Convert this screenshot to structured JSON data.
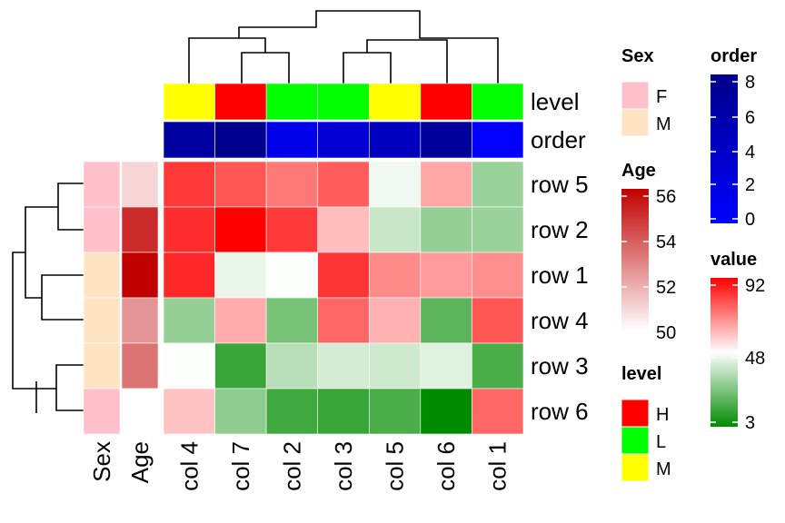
{
  "chart_data": {
    "type": "heatmap",
    "title": "",
    "columns": [
      "col 4",
      "col 7",
      "col 2",
      "col 3",
      "col 5",
      "col 6",
      "col 1"
    ],
    "rows": [
      "row 5",
      "row 2",
      "row 1",
      "row 4",
      "row 3",
      "row 6"
    ],
    "values": [
      [
        82,
        77,
        71,
        76,
        45,
        63,
        30
      ],
      [
        84,
        92,
        82,
        59,
        38,
        29,
        30
      ],
      [
        85,
        44,
        47,
        83,
        68,
        65,
        67
      ],
      [
        29,
        62,
        24,
        74,
        61,
        19,
        77
      ],
      [
        47,
        13,
        35,
        40,
        39,
        42,
        16
      ],
      [
        58,
        28,
        14,
        13,
        16,
        3,
        74
      ]
    ],
    "row_annotations": {
      "labels": [
        "Sex",
        "Age"
      ],
      "Sex": [
        "F",
        "F",
        "M",
        "M",
        "M",
        "F"
      ],
      "Age": [
        51,
        55,
        56,
        52.5,
        53.3,
        null
      ]
    },
    "col_annotations": {
      "labels": [
        "level",
        "order"
      ],
      "level": [
        "M",
        "H",
        "L",
        "L",
        "M",
        "H",
        "L"
      ],
      "order": [
        6.5,
        7.8,
        1.5,
        3.2,
        4.5,
        7.0,
        0.2
      ]
    },
    "legends": {
      "sex": {
        "title": "Sex",
        "items": [
          {
            "label": "F",
            "color": "#FFC0CB"
          },
          {
            "label": "M",
            "color": "#FFE4C4"
          }
        ]
      },
      "level": {
        "title": "level",
        "items": [
          {
            "label": "H",
            "color": "#FF0000"
          },
          {
            "label": "L",
            "color": "#00FF00"
          },
          {
            "label": "M",
            "color": "#FFFF00"
          }
        ]
      },
      "age": {
        "title": "Age",
        "range": [
          50,
          56
        ],
        "ticks": [
          "56",
          "54",
          "52",
          "50"
        ],
        "colors": [
          "#FFFFFF",
          "#C00000"
        ]
      },
      "order": {
        "title": "order",
        "range": [
          0,
          8
        ],
        "ticks": [
          "8",
          "6",
          "4",
          "2",
          "0"
        ],
        "colors": [
          "#0000FF",
          "#00008B"
        ]
      },
      "value": {
        "title": "value",
        "range": [
          3,
          92
        ],
        "ticks": [
          "92",
          "48",
          "3"
        ],
        "colors": [
          "#008B00",
          "#FFFFFF",
          "#FF0000"
        ]
      }
    }
  }
}
